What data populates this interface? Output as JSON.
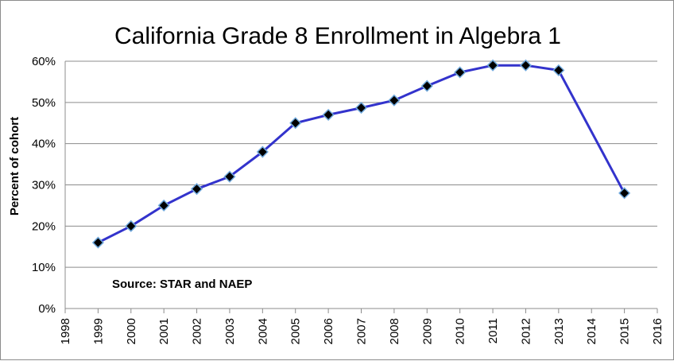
{
  "chart_data": {
    "type": "line",
    "title": "California Grade 8 Enrollment in Algebra 1",
    "ylabel": "Percent of cohort",
    "xlabel": "",
    "annotation": "Source: STAR and NAEP",
    "xlim": [
      1998,
      2016
    ],
    "ylim": [
      0,
      60
    ],
    "x_ticks": [
      "1998",
      "1999",
      "2000",
      "2001",
      "2002",
      "2003",
      "2004",
      "2005",
      "2006",
      "2007",
      "2008",
      "2009",
      "2010",
      "2011",
      "2012",
      "2013",
      "2014",
      "2015",
      "2016"
    ],
    "y_ticks": [
      "0%",
      "10%",
      "20%",
      "30%",
      "40%",
      "50%",
      "60%"
    ],
    "y_tick_values": [
      0,
      10,
      20,
      30,
      40,
      50,
      60
    ],
    "grid": "horizontal",
    "legend": "none",
    "series": [
      {
        "x": [
          1999,
          2000,
          2001,
          2002,
          2003,
          2004,
          2005,
          2006,
          2007,
          2008,
          2009,
          2010,
          2011,
          2012,
          2013,
          2015
        ],
        "values": [
          16,
          20,
          25,
          29,
          32,
          38,
          45,
          47,
          48.7,
          50.5,
          54,
          57.3,
          59,
          59,
          57.8,
          28
        ],
        "color": "#3333cc",
        "marker": "diamond",
        "marker_fill": "#000000",
        "marker_edge": "#6fa8dc"
      }
    ]
  }
}
